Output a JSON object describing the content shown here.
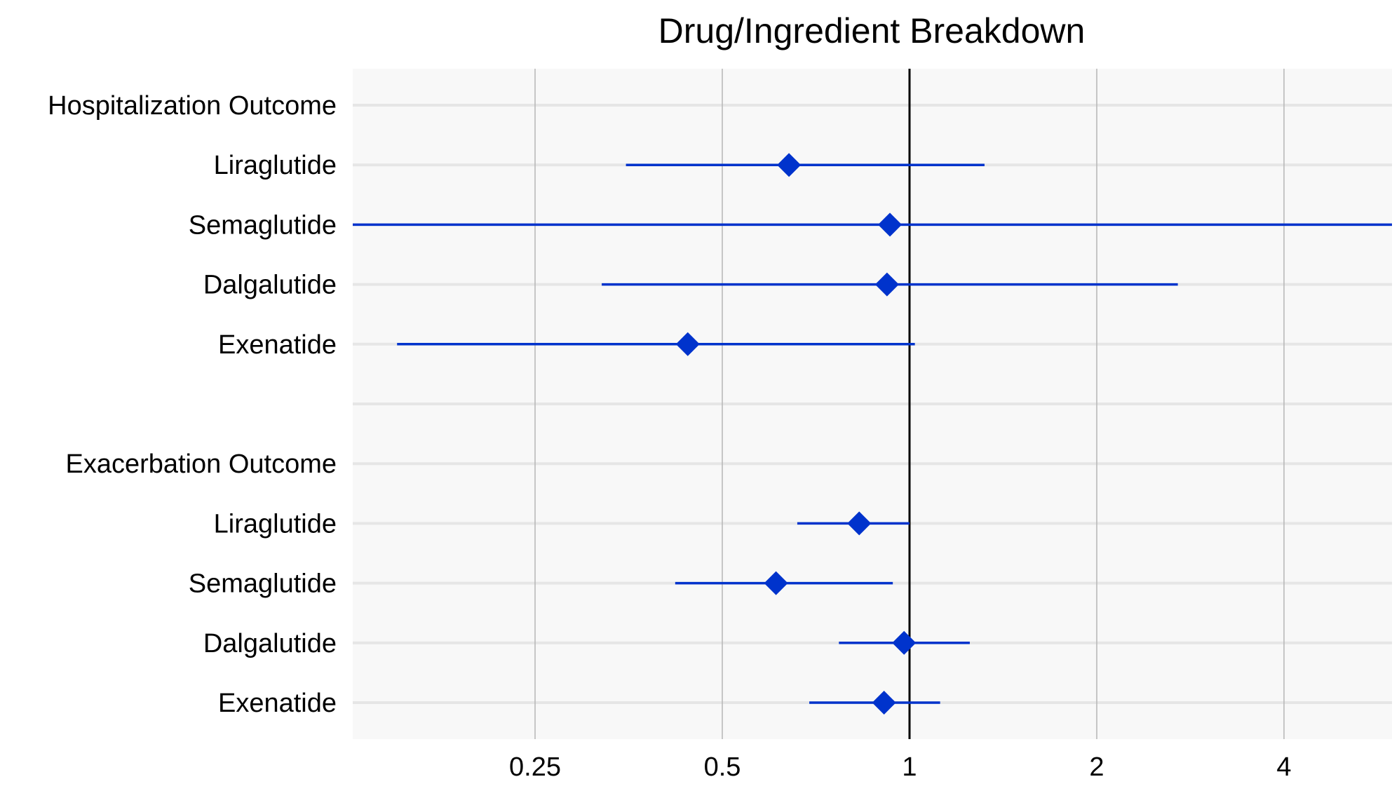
{
  "chart_data": {
    "type": "forest",
    "title": "Drug/Ingredient Breakdown",
    "x_scale": "log2",
    "xlim": [
      0.12,
      6
    ],
    "x_ticks": [
      {
        "value": 0.25,
        "label": "0.25"
      },
      {
        "value": 0.5,
        "label": "0.5"
      },
      {
        "value": 1,
        "label": "1"
      },
      {
        "value": 2,
        "label": "2"
      },
      {
        "value": 4,
        "label": "4"
      }
    ],
    "reference_line": 1,
    "grid": true,
    "colors": {
      "point": "#0033cc",
      "interval": "#0033cc",
      "reference": "#000000",
      "panel": "#f8f8f8",
      "grid": "#e6e6e6",
      "vgrid": "#b5b5b5"
    },
    "rows": [
      {
        "label": "Hospitalization Outcome",
        "header": true
      },
      {
        "label": "Liraglutide",
        "estimate": 0.64,
        "lower": 0.35,
        "upper": 1.32
      },
      {
        "label": "Semaglutide",
        "estimate": 0.93,
        "lower": 0.12,
        "upper": 6
      },
      {
        "label": "Dalgalutide",
        "estimate": 0.92,
        "lower": 0.32,
        "upper": 2.7
      },
      {
        "label": "Exenatide",
        "estimate": 0.44,
        "lower": 0.15,
        "upper": 1.02
      },
      {
        "label": "",
        "spacer": true
      },
      {
        "label": "Exacerbation Outcome",
        "header": true
      },
      {
        "label": "Liraglutide",
        "estimate": 0.83,
        "lower": 0.66,
        "upper": 1.0
      },
      {
        "label": "Semaglutide",
        "estimate": 0.61,
        "lower": 0.42,
        "upper": 0.94
      },
      {
        "label": "Dalgalutide",
        "estimate": 0.98,
        "lower": 0.77,
        "upper": 1.25
      },
      {
        "label": "Exenatide",
        "estimate": 0.91,
        "lower": 0.69,
        "upper": 1.12
      }
    ]
  }
}
